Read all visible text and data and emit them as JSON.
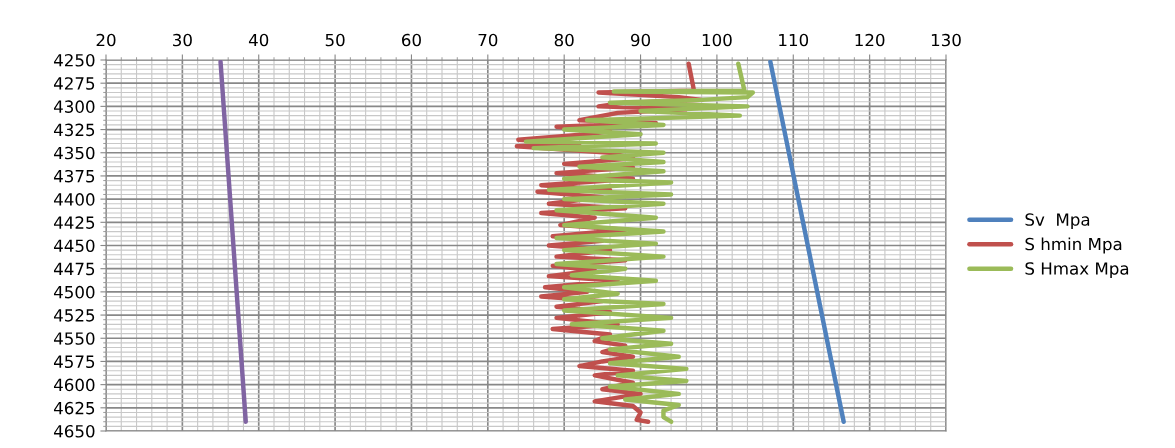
{
  "chart_data": {
    "type": "line",
    "xlim": [
      20,
      130
    ],
    "xticks": [
      20,
      30,
      40,
      50,
      60,
      70,
      80,
      90,
      100,
      110,
      120,
      130
    ],
    "ylim": [
      4650,
      4250
    ],
    "yticks": [
      4250,
      4275,
      4300,
      4325,
      4350,
      4375,
      4400,
      4425,
      4450,
      4475,
      4500,
      4525,
      4550,
      4575,
      4600,
      4625,
      4650
    ],
    "grid": true,
    "legend": "right",
    "line_style": "solid",
    "marker": "none",
    "series": [
      {
        "name": "Sv  Mpa",
        "color": "#4f81bd",
        "x": [
          107,
          116.6
        ],
        "values": [
          4252,
          4640
        ]
      },
      {
        "name": "S hmin Mpa",
        "color": "#c0504d",
        "x": [
          96.3,
          97,
          84.5,
          95,
          98,
          88,
          84.5,
          96,
          87,
          82,
          92,
          79,
          86,
          83,
          74,
          82,
          73.8,
          86,
          89,
          80,
          89,
          79,
          89,
          77,
          86,
          76.5,
          85,
          78,
          88,
          77,
          84,
          79.5,
          88,
          78.5,
          85,
          78,
          86,
          79,
          88,
          78.5,
          84,
          78,
          87,
          77.5,
          83,
          77,
          85,
          79,
          86,
          79,
          87,
          78.5,
          86,
          84,
          88,
          85,
          89,
          85,
          82,
          89,
          84,
          89,
          85,
          90,
          84,
          89,
          90,
          89.5,
          91
        ],
        "values": [
          4254,
          4283,
          4285,
          4290,
          4293,
          4296,
          4300,
          4303,
          4307,
          4315,
          4318,
          4322,
          4327,
          4330,
          4336,
          4340,
          4343,
          4350,
          4356,
          4362,
          4366,
          4372,
          4378,
          4385,
          4390,
          4392,
          4398,
          4405,
          4410,
          4415,
          4420,
          4428,
          4433,
          4440,
          4445,
          4450,
          4455,
          4462,
          4466,
          4472,
          4477,
          4483,
          4488,
          4495,
          4500,
          4505,
          4510,
          4516,
          4522,
          4528,
          4535,
          4540,
          4546,
          4553,
          4558,
          4565,
          4570,
          4575,
          4580,
          4585,
          4590,
          4598,
          4605,
          4610,
          4618,
          4623,
          4630,
          4638,
          4640
        ]
      },
      {
        "name": "S Hmax Mpa",
        "color": "#9bbb59",
        "x": [
          102.8,
          103.6,
          86.5,
          104.7,
          104,
          98,
          86,
          104,
          90,
          103,
          83,
          93,
          80,
          90,
          75,
          92,
          76,
          93,
          85,
          93,
          82,
          93,
          80,
          94,
          78,
          94,
          80,
          93,
          79,
          92,
          80,
          93,
          79,
          92,
          80,
          93,
          79,
          88,
          81,
          92,
          80,
          87,
          80,
          93,
          80,
          94,
          81,
          93,
          85,
          94,
          86,
          95,
          86,
          96,
          87,
          96,
          86,
          95,
          88,
          95,
          93,
          93,
          94
        ],
        "values": [
          4254,
          4283,
          4284,
          4285,
          4290,
          4293,
          4296,
          4300,
          4305,
          4310,
          4315,
          4320,
          4325,
          4330,
          4338,
          4340,
          4345,
          4350,
          4355,
          4360,
          4365,
          4370,
          4378,
          4382,
          4390,
          4395,
          4400,
          4405,
          4412,
          4420,
          4428,
          4435,
          4442,
          4448,
          4455,
          4462,
          4470,
          4475,
          4482,
          4488,
          4495,
          4502,
          4508,
          4513,
          4520,
          4528,
          4535,
          4542,
          4550,
          4556,
          4562,
          4570,
          4577,
          4583,
          4590,
          4596,
          4602,
          4610,
          4616,
          4622,
          4628,
          4635,
          4640
        ]
      },
      {
        "color": "#8064a2",
        "x": [
          35,
          38.3
        ],
        "values": [
          4252,
          4640
        ]
      }
    ]
  }
}
